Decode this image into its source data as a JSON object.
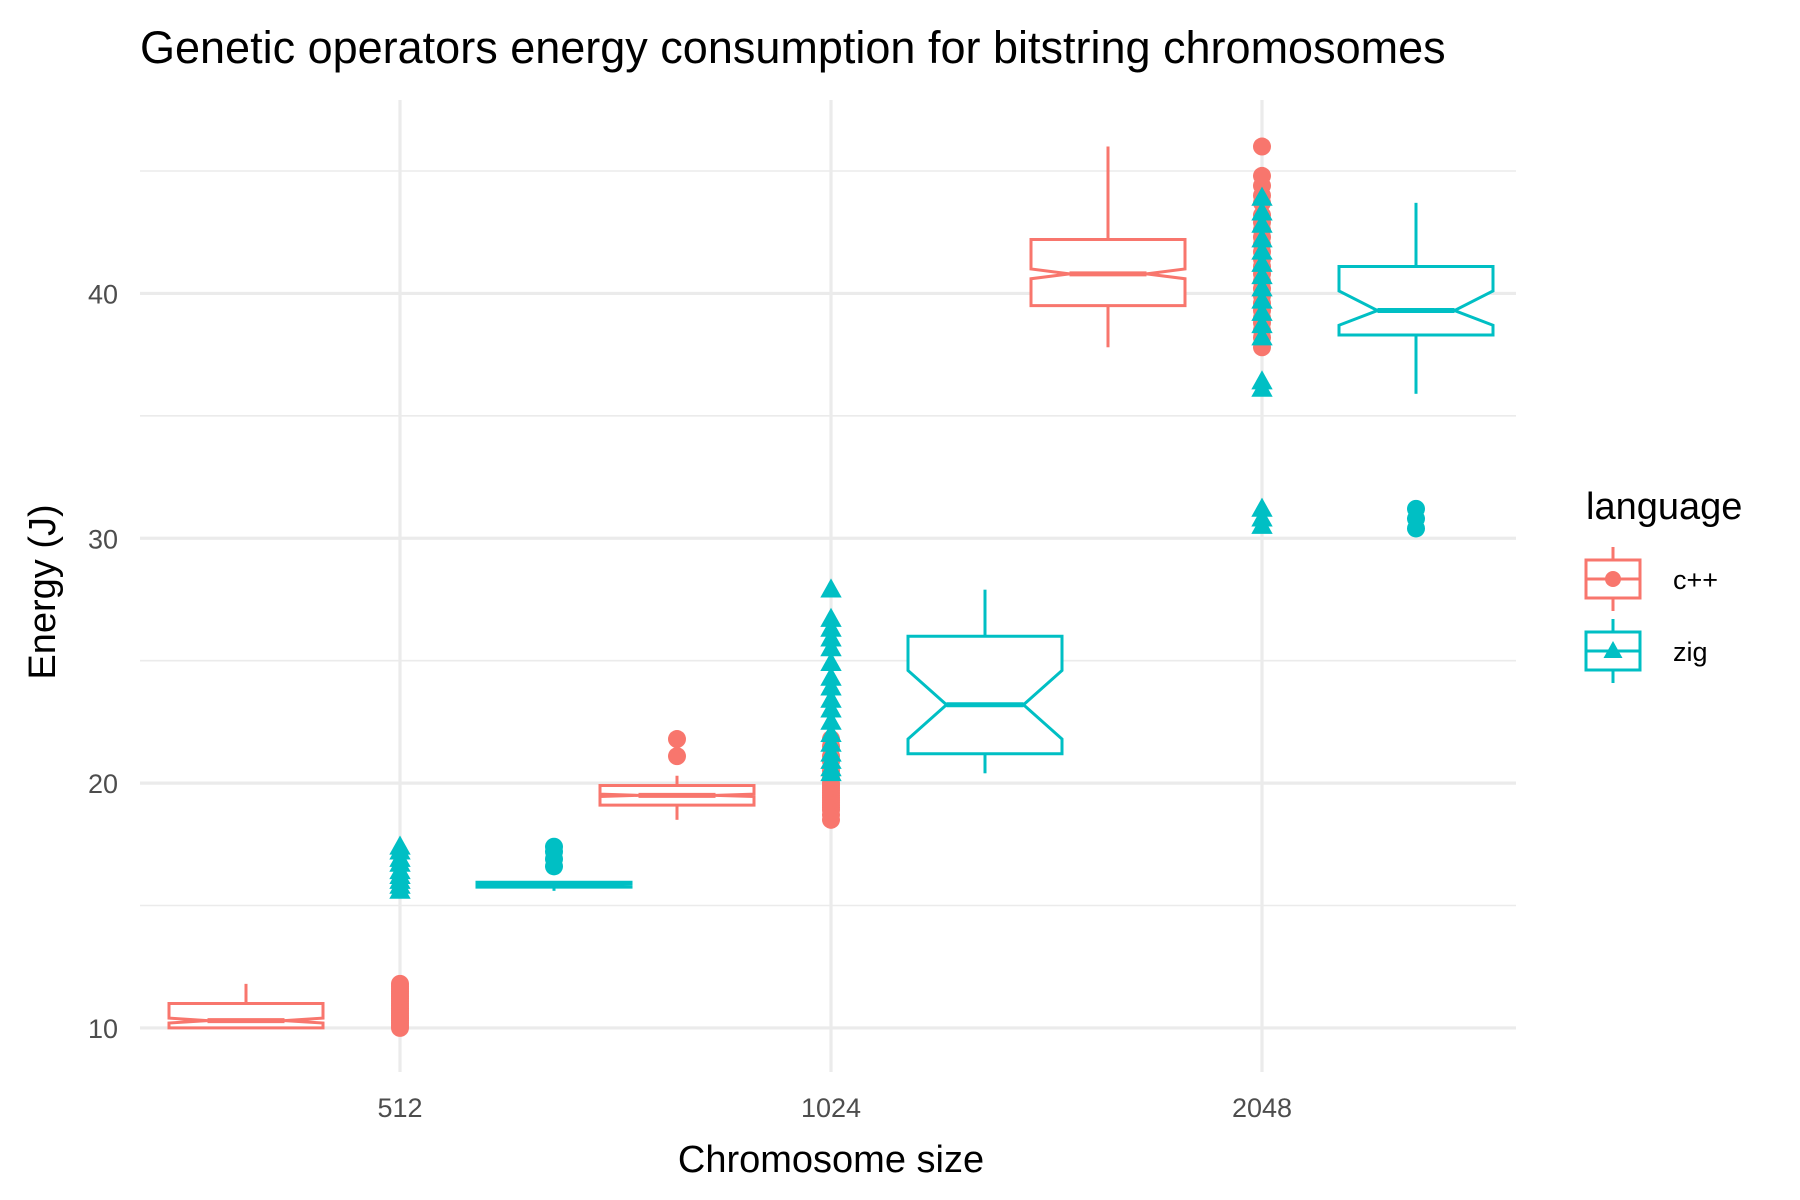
{
  "chart_data": {
    "type": "boxplot",
    "title": "Genetic operators energy consumption for bitstring chromosomes",
    "xlabel": "Chromosome size",
    "ylabel": "Energy (J)",
    "categories": [
      "512",
      "1024",
      "2048"
    ],
    "ylim": [
      8.2,
      47.9
    ],
    "yticks": [
      10,
      20,
      30,
      40
    ],
    "grid": true,
    "notched": true,
    "legend": {
      "title": "language",
      "position": "right"
    },
    "series": [
      {
        "name": "c++",
        "color": "#f8766d",
        "marker": "circle",
        "boxes": [
          {
            "category": "512",
            "whisker_low": 10.0,
            "q1": 10.0,
            "median": 10.3,
            "q3": 11.0,
            "whisker_high": 11.8,
            "notch_low": 10.2,
            "notch_high": 10.4,
            "points": [
              10.0,
              10.1,
              10.2,
              10.3,
              10.4,
              10.5,
              10.6,
              10.7,
              10.8,
              10.9,
              11.0,
              11.1,
              11.2,
              11.3,
              11.4,
              11.5,
              11.6,
              11.7,
              11.8
            ],
            "outliers": []
          },
          {
            "category": "1024",
            "whisker_low": 18.5,
            "q1": 19.1,
            "median": 19.5,
            "q3": 19.9,
            "whisker_high": 20.3,
            "notch_low": 19.45,
            "notch_high": 19.55,
            "points": [
              18.5,
              18.7,
              18.9,
              19.0,
              19.1,
              19.2,
              19.3,
              19.4,
              19.5,
              19.6,
              19.7,
              19.8,
              19.9,
              20.0,
              20.2,
              20.5,
              20.9,
              21.1,
              21.5,
              21.8
            ],
            "outliers": [
              21.1,
              21.8
            ]
          },
          {
            "category": "2048",
            "whisker_low": 37.8,
            "q1": 39.5,
            "median": 40.8,
            "q3": 42.2,
            "whisker_high": 46.0,
            "notch_low": 40.6,
            "notch_high": 41.0,
            "points": [
              37.8,
              38.2,
              38.5,
              38.8,
              39.0,
              39.3,
              39.6,
              39.9,
              40.2,
              40.5,
              40.8,
              41.1,
              41.4,
              41.7,
              42.0,
              42.3,
              42.6,
              42.9,
              43.2,
              43.7,
              44.0,
              44.4,
              44.8,
              46.0
            ],
            "outliers": []
          }
        ]
      },
      {
        "name": "zig",
        "color": "#00bfc4",
        "marker": "triangle",
        "boxes": [
          {
            "category": "512",
            "whisker_low": 15.6,
            "q1": 15.75,
            "median": 15.85,
            "q3": 15.95,
            "whisker_high": 16.0,
            "notch_low": 15.83,
            "notch_high": 15.87,
            "points": [
              15.6,
              15.8,
              16.0,
              16.2,
              16.4,
              16.7,
              16.9,
              17.2,
              17.4
            ],
            "outliers": [
              16.6,
              16.9,
              17.2,
              17.4
            ]
          },
          {
            "category": "1024",
            "whisker_low": 20.4,
            "q1": 21.2,
            "median": 23.2,
            "q3": 26.0,
            "whisker_high": 27.9,
            "notch_low": 21.8,
            "notch_high": 24.6,
            "points": [
              20.4,
              20.6,
              20.9,
              21.2,
              21.6,
              22.0,
              22.5,
              23.0,
              23.4,
              23.9,
              24.3,
              24.9,
              25.5,
              25.9,
              26.3,
              26.7,
              27.9
            ],
            "outliers": []
          },
          {
            "category": "2048",
            "whisker_low": 35.9,
            "q1": 38.3,
            "median": 39.3,
            "q3": 41.1,
            "whisker_high": 43.7,
            "notch_low": 38.7,
            "notch_high": 40.1,
            "points": [
              30.5,
              30.8,
              31.2,
              36.1,
              36.4,
              38.2,
              38.7,
              39.2,
              39.7,
              40.2,
              40.7,
              41.2,
              41.7,
              42.2,
              42.8,
              43.3,
              43.9
            ],
            "outliers": [
              30.4,
              30.8,
              31.2
            ]
          }
        ]
      }
    ]
  }
}
